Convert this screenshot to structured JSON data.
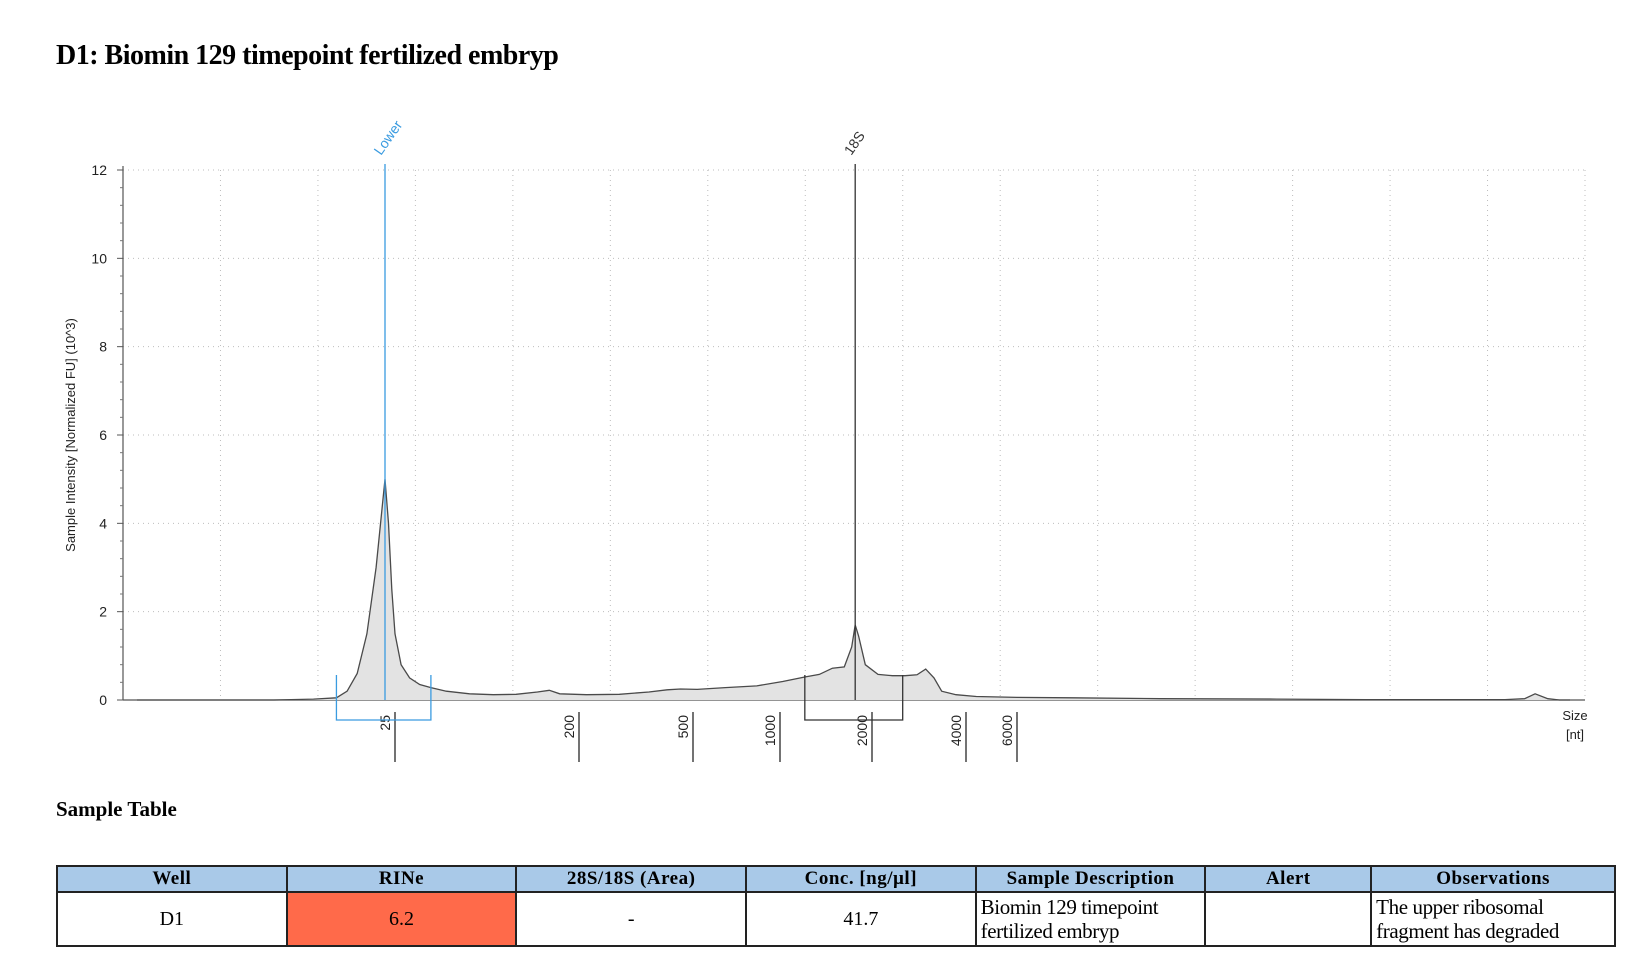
{
  "report": {
    "title": "D1: Biomin 129 timepoint fertilized embryp",
    "section_title": "Sample Table"
  },
  "chart_data": {
    "type": "line",
    "title": "",
    "ylabel": "Sample Intensity [Normalized FU] (10^3)",
    "xlabel_line1": "Size",
    "xlabel_line2": "[nt]",
    "ylim": [
      0,
      12
    ],
    "yticks": [
      0,
      2,
      4,
      6,
      8,
      10,
      12
    ],
    "x_scale": "log",
    "xticks": [
      25,
      200,
      500,
      1000,
      2000,
      4000,
      6000
    ],
    "x_range_nt": [
      8,
      500000
    ],
    "grid": true,
    "fill_color": "#e3e3e3",
    "line_color": "#4a4a4a",
    "peak_markers": [
      {
        "label": "Lower",
        "x": 25,
        "color": "#3a9be0"
      },
      {
        "label": "18S",
        "x": 1900,
        "color": "#333333"
      }
    ],
    "regions": [
      {
        "x_start": 20,
        "x_end": 42,
        "color": "#3a9be0"
      },
      {
        "x_start": 1300,
        "x_end": 2700,
        "color": "#333333"
      }
    ],
    "series": [
      {
        "x": [
          8,
          12,
          15,
          18,
          20,
          21,
          22,
          23,
          24,
          25,
          26,
          27,
          28,
          30,
          33,
          37,
          42,
          50,
          65,
          85,
          110,
          140,
          160,
          180,
          230,
          300,
          380,
          440,
          490,
          560,
          700,
          900,
          1100,
          1300,
          1450,
          1600,
          1750,
          1850,
          1900,
          1950,
          2050,
          2250,
          2500,
          2750,
          3000,
          3200,
          3400,
          3600,
          4000,
          4700,
          6500,
          10000,
          20000,
          50000,
          100000,
          200000,
          300000,
          350000,
          380000,
          420000,
          460000,
          500000
        ],
        "y": [
          0.0,
          0.0,
          0.0,
          0.02,
          0.05,
          0.2,
          0.6,
          1.5,
          3.0,
          5.0,
          4.0,
          2.5,
          1.5,
          0.8,
          0.5,
          0.35,
          0.28,
          0.2,
          0.14,
          0.12,
          0.13,
          0.18,
          0.22,
          0.14,
          0.12,
          0.13,
          0.18,
          0.23,
          0.25,
          0.24,
          0.28,
          0.32,
          0.42,
          0.52,
          0.58,
          0.72,
          0.75,
          1.2,
          1.7,
          1.45,
          0.8,
          0.58,
          0.55,
          0.55,
          0.57,
          0.7,
          0.5,
          0.2,
          0.12,
          0.08,
          0.06,
          0.05,
          0.03,
          0.02,
          0.01,
          0.01,
          0.01,
          0.03,
          0.14,
          0.03,
          0.0,
          0.0
        ]
      }
    ]
  },
  "table": {
    "headers": [
      "Well",
      "RINe",
      "28S/18S (Area)",
      "Conc. [ng/µl]",
      "Sample Description",
      "Alert",
      "Observations"
    ],
    "row": {
      "well": "D1",
      "rine": "6.2",
      "ratio": "-",
      "conc": "41.7",
      "description": "Biomin 129 timepoint fertilized embryp",
      "alert": "",
      "observations": "The upper ribosomal fragment has degraded"
    },
    "rine_color": "#ff6a4a",
    "header_color": "#a9c9e8"
  }
}
